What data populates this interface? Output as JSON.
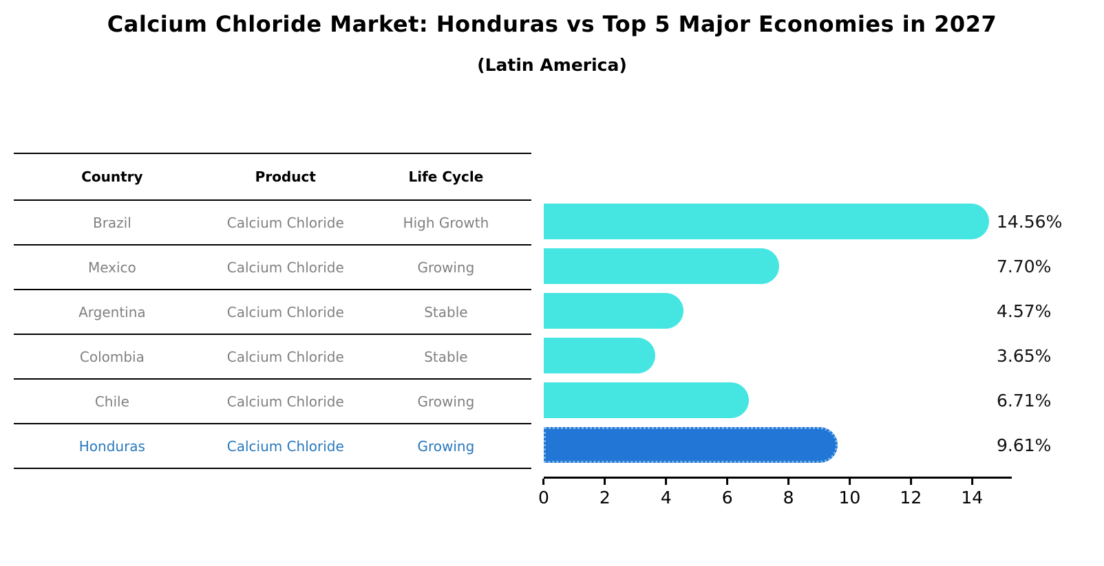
{
  "header": {
    "title": "Calcium Chloride Market: Honduras vs Top 5 Major Economies in 2027",
    "subtitle": "(Latin America)"
  },
  "table": {
    "headers": [
      "Country",
      "Product",
      "Life Cycle"
    ],
    "rows": [
      {
        "country": "Brazil",
        "product": "Calcium Chloride",
        "life_cycle": "High Growth",
        "highlight": false
      },
      {
        "country": "Mexico",
        "product": "Calcium Chloride",
        "life_cycle": "Growing",
        "highlight": false
      },
      {
        "country": "Argentina",
        "product": "Calcium Chloride",
        "life_cycle": "Stable",
        "highlight": false
      },
      {
        "country": "Colombia",
        "product": "Calcium Chloride",
        "life_cycle": "Stable",
        "highlight": false
      },
      {
        "country": "Chile",
        "product": "Calcium Chloride",
        "life_cycle": "Growing",
        "highlight": false
      },
      {
        "country": "Honduras",
        "product": "Calcium Chloride",
        "life_cycle": "Growing",
        "highlight": true
      }
    ]
  },
  "chart_data": {
    "type": "bar",
    "orientation": "horizontal",
    "title": "Calcium Chloride Market: Honduras vs Top 5 Major Economies in 2027",
    "subtitle": "(Latin America)",
    "categories": [
      "Brazil",
      "Mexico",
      "Argentina",
      "Colombia",
      "Chile",
      "Honduras"
    ],
    "values": [
      14.56,
      7.7,
      4.57,
      3.65,
      6.71,
      9.61
    ],
    "value_labels": [
      "14.56%",
      "7.70%",
      "4.57%",
      "3.65%",
      "6.71%",
      "9.61%"
    ],
    "xticks": [
      0,
      2,
      4,
      6,
      8,
      10,
      12,
      14
    ],
    "xlim": [
      0,
      15.3
    ],
    "grid": false,
    "legend": "none",
    "highlight_index": 5,
    "colors": {
      "bar": "#45E6E1",
      "highlight_bar": "#2176D6",
      "highlight_bar_border": "#7CB4E8",
      "table_text": "#808080",
      "highlight_text": "#2878BE",
      "axis": "#000000"
    }
  }
}
